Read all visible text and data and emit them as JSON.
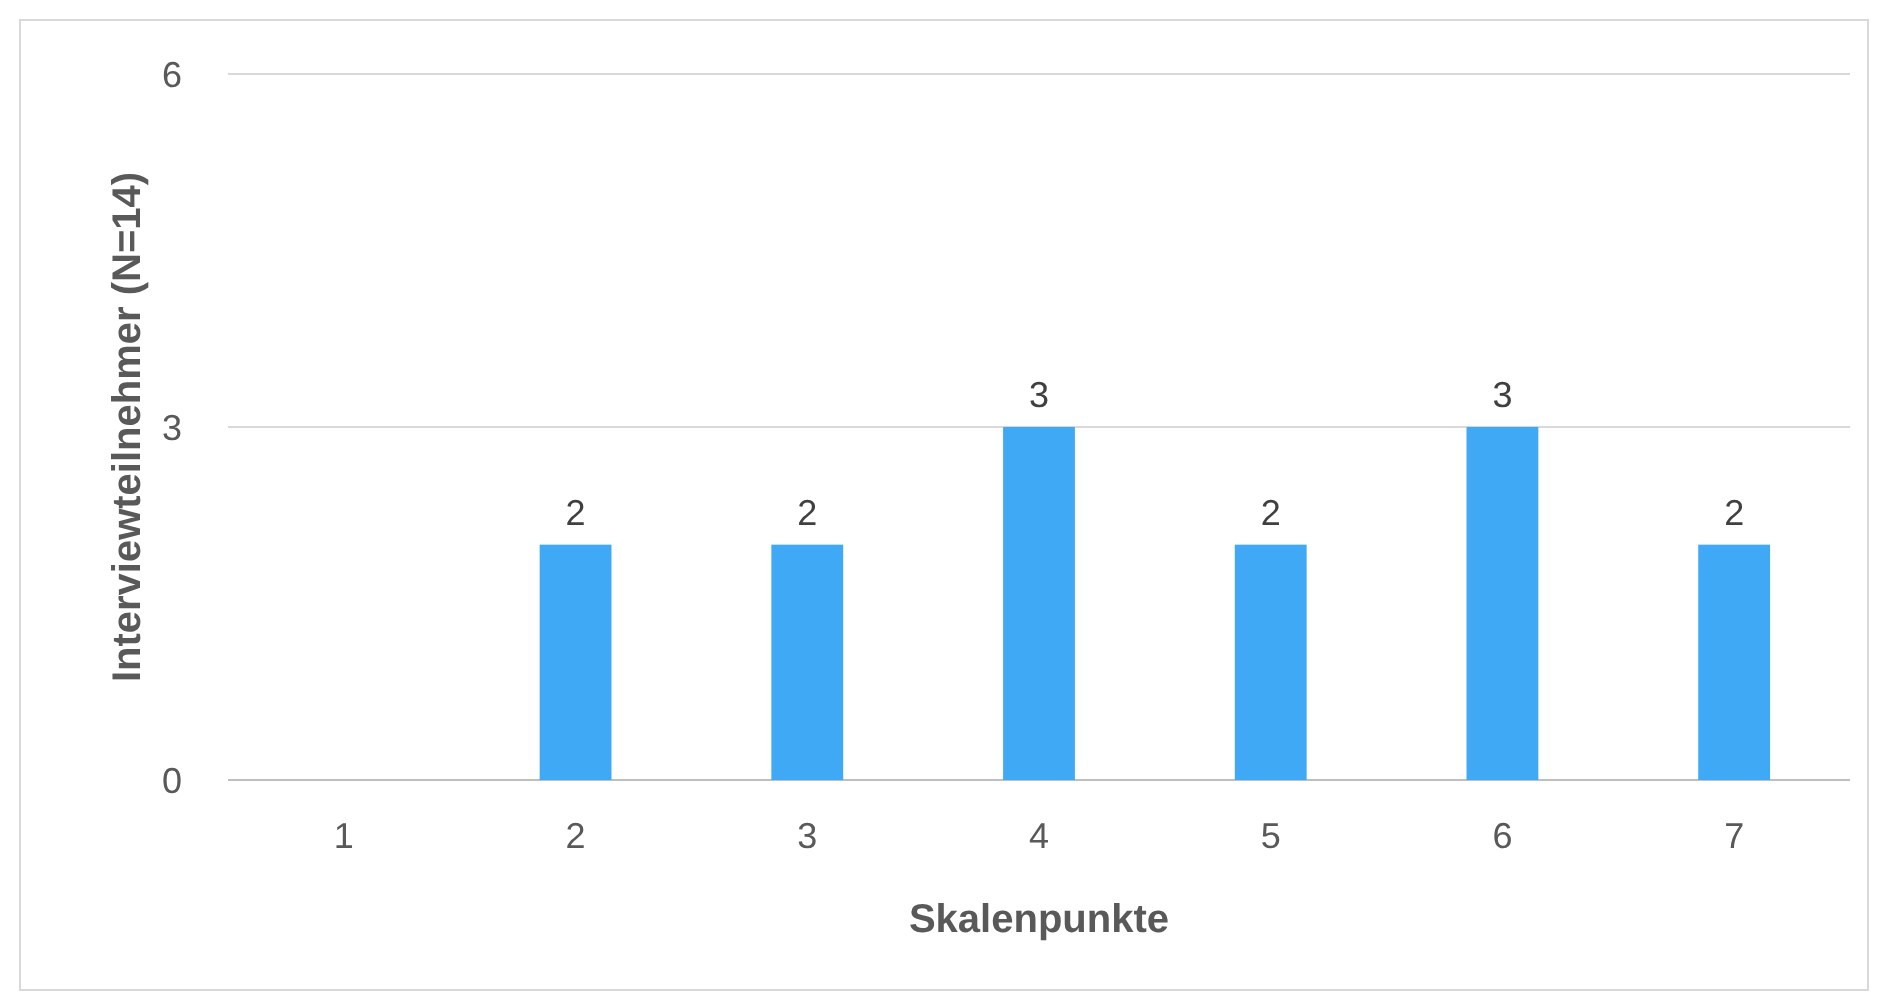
{
  "chart_data": {
    "type": "bar",
    "xlabel": "Skalenpunkte",
    "ylabel": "Interviewteilnehmer (N=14)",
    "categories": [
      "1",
      "2",
      "3",
      "4",
      "5",
      "6",
      "7"
    ],
    "values": [
      0,
      2,
      2,
      3,
      2,
      3,
      2
    ],
    "value_labels": [
      null,
      "2",
      "2",
      "3",
      "2",
      "3",
      "2"
    ],
    "color": "#3fa9f5",
    "ylim": [
      0,
      6
    ],
    "yticks": [
      0,
      3,
      6
    ],
    "grid": "y"
  }
}
